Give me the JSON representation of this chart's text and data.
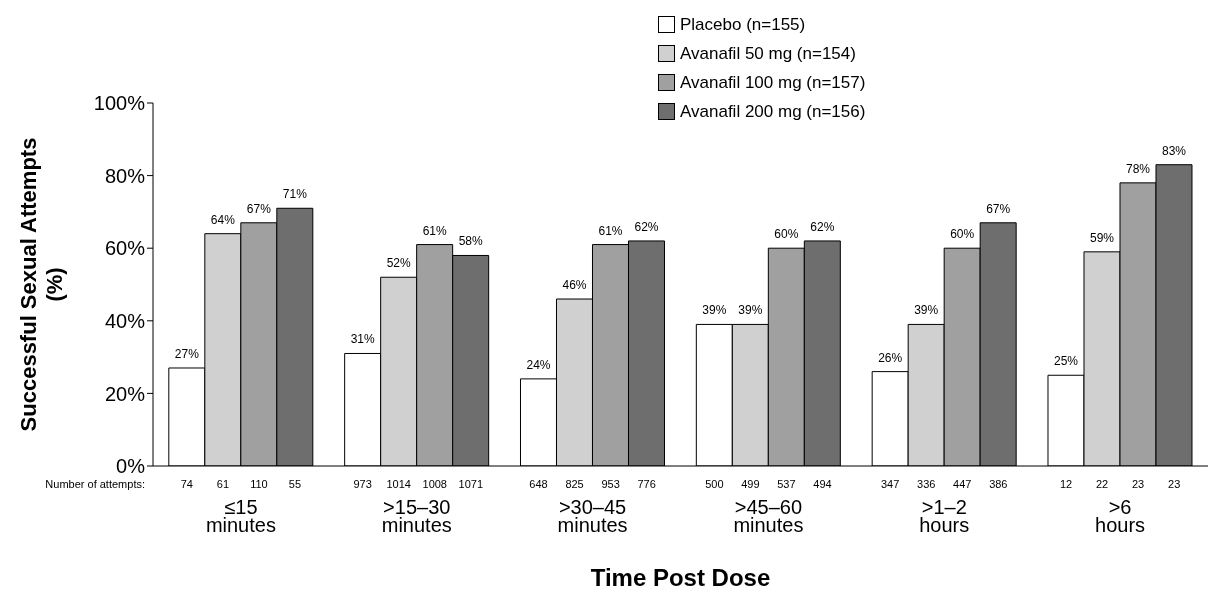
{
  "chart_data": {
    "type": "bar",
    "xlabel": "Time Post Dose",
    "ylabel": "Successful Sexual Attempts (%)",
    "categories": [
      "≤15 minutes",
      ">15–30 minutes",
      ">30–45 minutes",
      ">45–60 minutes",
      ">1–2 hours",
      ">6 hours"
    ],
    "series": [
      {
        "name": "Placebo (n=155)",
        "color": "#ffffff",
        "values": [
          27,
          31,
          24,
          39,
          26,
          25
        ],
        "value_labels": [
          "27%",
          "31%",
          "24%",
          "39%",
          "26%",
          "25%"
        ]
      },
      {
        "name": "Avanafil 50 mg (n=154)",
        "color": "#d0d0d0",
        "values": [
          64,
          52,
          46,
          39,
          39,
          59
        ],
        "value_labels": [
          "64%",
          "52%",
          "46%",
          "39%",
          "39%",
          "59%"
        ]
      },
      {
        "name": "Avanafil 100 mg (n=157)",
        "color": "#a0a0a0",
        "values": [
          67,
          61,
          61,
          60,
          60,
          78
        ],
        "value_labels": [
          "67%",
          "61%",
          "61%",
          "60%",
          "60%",
          "78%"
        ]
      },
      {
        "name": "Avanafil 200 mg (n=156)",
        "color": "#6e6e6e",
        "values": [
          71,
          58,
          62,
          62,
          67,
          83
        ],
        "value_labels": [
          "71%",
          "58%",
          "62%",
          "62%",
          "67%",
          "83%"
        ]
      }
    ],
    "ylim": [
      0,
      100
    ],
    "yticks": [
      {
        "value": 0,
        "label": "0%"
      },
      {
        "value": 20,
        "label": "20%"
      },
      {
        "value": 40,
        "label": "40%"
      },
      {
        "value": 60,
        "label": "60%"
      },
      {
        "value": 80,
        "label": "80%"
      },
      {
        "value": 100,
        "label": "100%"
      }
    ],
    "grid": false,
    "legend": "top",
    "annotations": [
      "Number of attempts:",
      "74",
      "61",
      "110",
      "55",
      "973",
      "1014",
      "1008",
      "1071",
      "648",
      "825",
      "953",
      "776",
      "500",
      "499",
      "537",
      "494",
      "347",
      "336",
      "447",
      "386",
      "12",
      "22",
      "23",
      "23"
    ]
  }
}
